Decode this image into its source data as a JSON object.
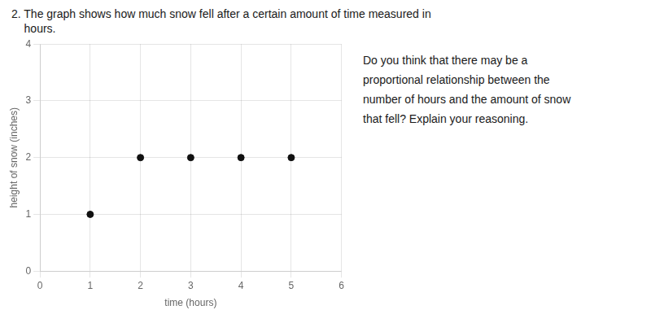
{
  "chart_data": {
    "type": "scatter",
    "title": [
      "2. The graph shows how much snow fell after a certain amount of time measured in",
      "    hours."
    ],
    "annotations": [
      "Do you think that there may be a",
      "proportional relationship between the",
      "number of hours and the amount of snow",
      "that fell? Explain your reasoning."
    ],
    "x": [
      1,
      2,
      3,
      4,
      5
    ],
    "values": [
      1,
      2,
      2,
      2,
      2
    ],
    "xlabel": "time (hours)",
    "ylabel": "height of snow (inches)",
    "xlim": [
      0,
      6
    ],
    "ylim": [
      0,
      4
    ],
    "xticks": [
      0,
      1,
      2,
      3,
      4,
      5,
      6
    ],
    "yticks": [
      0,
      1,
      2,
      3,
      4
    ],
    "color": "#111111",
    "grid": true
  }
}
